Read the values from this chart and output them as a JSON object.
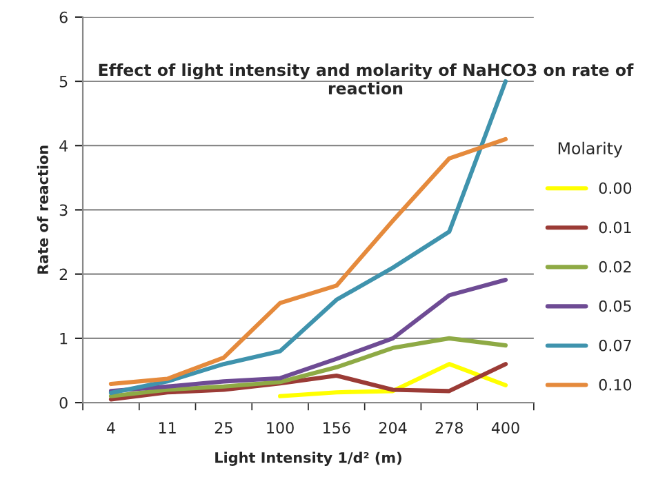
{
  "chart_data": {
    "type": "line",
    "title": "Effect of light intensity and molarity of NaHCO3 on rate of reaction",
    "xlabel": "Light Intensity 1/d² (m)",
    "ylabel": "Rate of reaction",
    "legend_title": "Molarity",
    "categories": [
      "4",
      "11",
      "25",
      "100",
      "156",
      "204",
      "278",
      "400"
    ],
    "series": [
      {
        "name": "0.00",
        "color": "#ffff00",
        "values": [
          null,
          null,
          null,
          0.1,
          0.16,
          0.18,
          0.6,
          0.27
        ]
      },
      {
        "name": "0.01",
        "color": "#9b3b36",
        "values": [
          0.05,
          0.16,
          0.2,
          0.3,
          0.42,
          0.2,
          0.18,
          0.6
        ]
      },
      {
        "name": "0.02",
        "color": "#8eaa45",
        "values": [
          0.1,
          0.2,
          0.25,
          0.32,
          0.55,
          0.85,
          1.0,
          0.89
        ]
      },
      {
        "name": "0.05",
        "color": "#6e4b94",
        "values": [
          0.18,
          0.25,
          0.33,
          0.38,
          0.68,
          1.0,
          1.67,
          1.91
        ]
      },
      {
        "name": "0.07",
        "color": "#3f93ad",
        "values": [
          0.15,
          0.33,
          0.6,
          0.8,
          1.6,
          2.1,
          2.66,
          5.0
        ]
      },
      {
        "name": "0.10",
        "color": "#e58a3c",
        "values": [
          0.29,
          0.37,
          0.7,
          1.55,
          1.82,
          2.83,
          3.8,
          4.1
        ]
      }
    ],
    "ylim": [
      0,
      6
    ],
    "yticks": [
      0,
      1,
      2,
      3,
      4,
      5,
      6
    ],
    "grid": "y",
    "legend": "right",
    "marker": "none",
    "line_style": "solid"
  }
}
